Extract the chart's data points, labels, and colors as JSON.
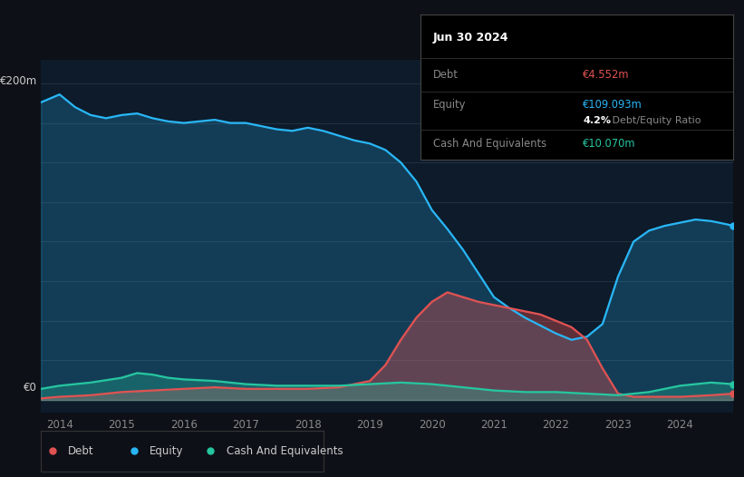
{
  "bg_color": "#0d1117",
  "plot_bg_color": "#0d1b2a",
  "grid_color": "#253545",
  "debt_label": "Debt",
  "equity_label": "Equity",
  "cash_label": "Cash And Equivalents",
  "title_text": "Jun 30 2024",
  "debt_value": "€4.552m",
  "equity_value": "€109.093m",
  "ratio_text_bold": "4.2%",
  "ratio_text_normal": " Debt/Equity Ratio",
  "cash_value": "€10.070m",
  "debt_color": "#e05252",
  "equity_color": "#29b6f6",
  "cash_color": "#26c6a0",
  "ylabel_text": "€200m",
  "y0_text": "€0",
  "ylim": [
    -8,
    215
  ],
  "xlim": [
    2013.7,
    2024.85
  ],
  "years": [
    2014,
    2015,
    2016,
    2017,
    2018,
    2019,
    2020,
    2021,
    2022,
    2023,
    2024
  ],
  "equity_x": [
    2013.7,
    2014.0,
    2014.25,
    2014.5,
    2014.75,
    2015.0,
    2015.25,
    2015.5,
    2015.75,
    2016.0,
    2016.25,
    2016.5,
    2016.75,
    2017.0,
    2017.25,
    2017.5,
    2017.75,
    2018.0,
    2018.25,
    2018.5,
    2018.75,
    2019.0,
    2019.25,
    2019.5,
    2019.75,
    2020.0,
    2020.25,
    2020.5,
    2020.75,
    2021.0,
    2021.25,
    2021.5,
    2021.75,
    2022.0,
    2022.25,
    2022.5,
    2022.75,
    2023.0,
    2023.25,
    2023.5,
    2023.75,
    2024.0,
    2024.25,
    2024.5,
    2024.75,
    2024.85
  ],
  "equity_y": [
    188,
    193,
    185,
    180,
    178,
    180,
    181,
    178,
    176,
    175,
    176,
    177,
    175,
    175,
    173,
    171,
    170,
    172,
    170,
    167,
    164,
    162,
    158,
    150,
    138,
    120,
    108,
    95,
    80,
    65,
    58,
    52,
    47,
    42,
    38,
    40,
    48,
    78,
    100,
    107,
    110,
    112,
    114,
    113,
    111,
    110
  ],
  "debt_x": [
    2013.7,
    2014.0,
    2014.5,
    2015.0,
    2015.5,
    2016.0,
    2016.5,
    2017.0,
    2017.5,
    2018.0,
    2018.5,
    2019.0,
    2019.25,
    2019.5,
    2019.75,
    2020.0,
    2020.25,
    2020.5,
    2020.75,
    2021.0,
    2021.25,
    2021.5,
    2021.75,
    2022.0,
    2022.25,
    2022.5,
    2022.75,
    2023.0,
    2023.25,
    2023.5,
    2023.75,
    2024.0,
    2024.5,
    2024.85
  ],
  "debt_y": [
    1,
    2,
    3,
    5,
    6,
    7,
    8,
    7,
    7,
    7,
    8,
    12,
    22,
    38,
    52,
    62,
    68,
    65,
    62,
    60,
    58,
    56,
    54,
    50,
    46,
    38,
    20,
    4,
    2,
    2,
    2,
    2,
    3,
    4
  ],
  "cash_x": [
    2013.7,
    2014.0,
    2014.5,
    2015.0,
    2015.25,
    2015.5,
    2015.75,
    2016.0,
    2016.5,
    2017.0,
    2017.5,
    2018.0,
    2018.5,
    2019.0,
    2019.5,
    2020.0,
    2020.5,
    2021.0,
    2021.5,
    2022.0,
    2022.5,
    2023.0,
    2023.5,
    2024.0,
    2024.5,
    2024.85
  ],
  "cash_y": [
    7,
    9,
    11,
    14,
    17,
    16,
    14,
    13,
    12,
    10,
    9,
    9,
    9,
    10,
    11,
    10,
    8,
    6,
    5,
    5,
    4,
    3,
    5,
    9,
    11,
    10
  ]
}
